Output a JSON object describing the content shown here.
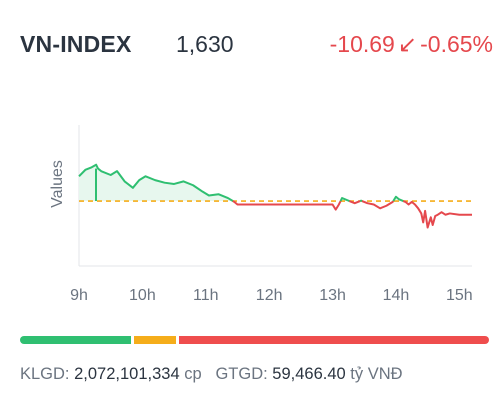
{
  "header": {
    "symbol": "VN-INDEX",
    "price": "1,630",
    "change": "-10.69",
    "change_pct": "-0.65%",
    "arrow": "↙"
  },
  "colors": {
    "up": "#2fbf71",
    "down": "#e5484d",
    "reference": "#f5ad1a",
    "up_fill": "#e7f7ee"
  },
  "market_breadth": {
    "advancing_share": 0.24,
    "unchanged_share": 0.09,
    "declining_share": 0.67
  },
  "stats": {
    "volume_label": "KLGD:",
    "volume_value": "2,072,101,334",
    "volume_unit": "cp",
    "value_label": "GTGD:",
    "value_value": "59,466.40",
    "value_unit": "tỷ VNĐ"
  },
  "chart_data": {
    "type": "line",
    "ylabel": "Values",
    "xticks": [
      "9h",
      "10h",
      "11h",
      "12h",
      "13h",
      "14h",
      "15h"
    ],
    "xlim": [
      9,
      15.2
    ],
    "ylim": [
      1590,
      1700
    ],
    "reference": 1640.69,
    "grid": false,
    "series": [
      {
        "x": [
          9.0,
          9.1,
          9.2,
          9.27,
          9.3,
          9.35,
          9.5,
          9.6,
          9.72,
          9.85,
          9.95,
          10.05,
          10.2,
          10.35,
          10.5,
          10.65,
          10.8,
          10.95,
          11.05,
          11.2,
          11.35,
          11.45,
          11.5,
          12.0,
          12.5,
          13.0,
          13.05,
          13.1,
          13.15,
          13.25,
          13.35,
          13.45,
          13.55,
          13.65,
          13.75,
          13.85,
          13.95,
          14.0,
          14.05,
          14.15,
          14.2,
          14.25,
          14.3,
          14.35,
          14.4,
          14.43,
          14.46,
          14.5,
          14.55,
          14.58,
          14.62,
          14.66,
          14.72,
          14.78,
          14.85,
          15.0,
          15.2
        ],
        "y": [
          1660,
          1665,
          1667,
          1669,
          1666,
          1664,
          1661,
          1664,
          1656,
          1651,
          1657,
          1660,
          1657,
          1655,
          1654,
          1656,
          1653,
          1648,
          1645,
          1646,
          1643,
          1640,
          1638,
          1638,
          1638,
          1638,
          1634,
          1638,
          1643,
          1641,
          1639,
          1641,
          1639,
          1638,
          1635,
          1637,
          1640,
          1644,
          1642,
          1640,
          1638,
          1640,
          1638,
          1635,
          1631,
          1624,
          1633,
          1620,
          1628,
          1622,
          1629,
          1630,
          1632,
          1630,
          1631,
          1630,
          1630
        ]
      }
    ]
  }
}
